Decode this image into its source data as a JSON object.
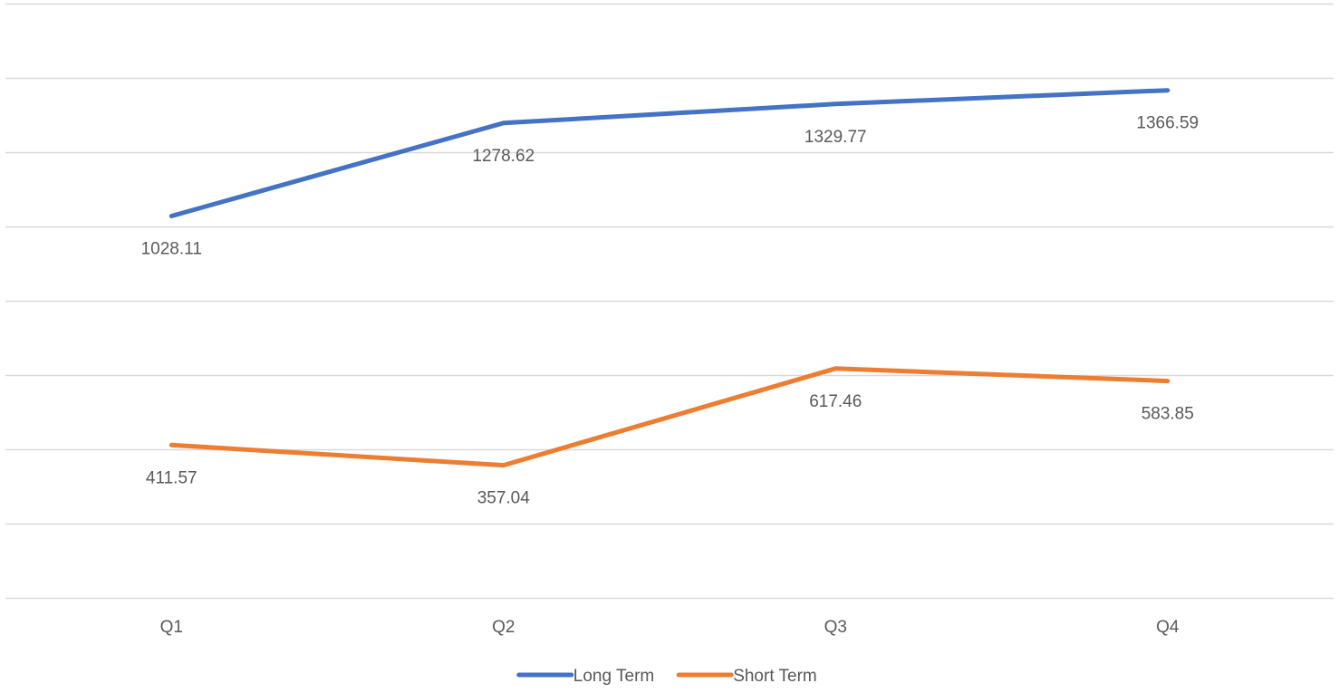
{
  "chart_data": {
    "type": "line",
    "title": "",
    "xlabel": "",
    "ylabel": "",
    "categories": [
      "Q1",
      "Q2",
      "Q3",
      "Q4"
    ],
    "ylim": [
      0,
      1600
    ],
    "y_tick_interval": 200,
    "grid": true,
    "legend_position": "bottom",
    "series": [
      {
        "name": "Long Term",
        "color": "#4472C4",
        "values": [
          1028.11,
          1278.62,
          1329.77,
          1366.59
        ],
        "labels": [
          "1028.11",
          "1278.62",
          "1329.77",
          "1366.59"
        ]
      },
      {
        "name": "Short Term",
        "color": "#ED7D31",
        "values": [
          411.57,
          357.04,
          617.46,
          583.85
        ],
        "labels": [
          "411.57",
          "357.04",
          "617.46",
          "583.85"
        ]
      }
    ]
  }
}
